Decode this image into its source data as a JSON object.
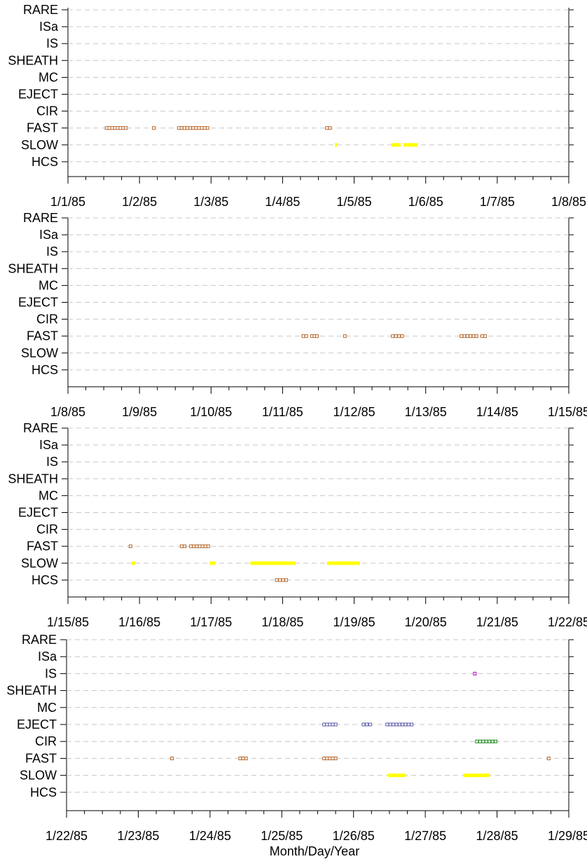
{
  "chart_data": {
    "type": "scatter",
    "xlabel": "Month/Day/Year",
    "categories": [
      "RARE",
      "ISa",
      "IS",
      "SHEATH",
      "MC",
      "EJECT",
      "CIR",
      "FAST",
      "SLOW",
      "HCS"
    ],
    "colors": {
      "FAST": "#b5652a",
      "SLOW": "#ffff00",
      "HCS": "#b5652a",
      "CIR": "#1a8a1a",
      "EJECT": "#5a5aa8",
      "IS": "#c000c0"
    },
    "grid": true,
    "panels": [
      {
        "xlim": [
          "1/1/85",
          "1/8/85"
        ],
        "ticks": [
          "1/1/85",
          "1/2/85",
          "1/3/85",
          "1/4/85",
          "1/5/85",
          "1/6/85",
          "1/7/85",
          "1/8/85"
        ],
        "series": [
          {
            "category": "FAST",
            "style": "squares",
            "ranges": [
              [
                0.52,
                0.83
              ],
              [
                1.18,
                1.22
              ],
              [
                1.53,
                1.97
              ],
              [
                3.6,
                3.68
              ]
            ]
          },
          {
            "category": "SLOW",
            "style": "bar",
            "ranges": [
              [
                3.73,
                3.77
              ],
              [
                4.52,
                4.65
              ],
              [
                4.69,
                4.89
              ]
            ]
          }
        ]
      },
      {
        "xlim": [
          "1/8/85",
          "1/15/85"
        ],
        "ticks": [
          "1/8/85",
          "1/9/85",
          "1/10/85",
          "1/11/85",
          "1/12/85",
          "1/13/85",
          "1/14/85",
          "1/15/85"
        ],
        "series": [
          {
            "category": "FAST",
            "style": "squares",
            "ranges": [
              [
                3.27,
                3.35
              ],
              [
                3.39,
                3.5
              ],
              [
                3.85,
                3.89
              ],
              [
                4.52,
                4.69
              ],
              [
                5.48,
                5.73
              ],
              [
                5.77,
                5.85
              ]
            ]
          }
        ]
      },
      {
        "xlim": [
          "1/15/85",
          "1/22/85"
        ],
        "ticks": [
          "1/15/85",
          "1/16/85",
          "1/17/85",
          "1/18/85",
          "1/19/85",
          "1/20/85",
          "1/21/85",
          "1/22/85"
        ],
        "series": [
          {
            "category": "FAST",
            "style": "squares",
            "ranges": [
              [
                0.85,
                0.9
              ],
              [
                1.57,
                1.65
              ],
              [
                1.7,
                1.98
              ]
            ]
          },
          {
            "category": "SLOW",
            "style": "bar",
            "ranges": [
              [
                0.89,
                0.94
              ],
              [
                1.98,
                2.06
              ],
              [
                2.55,
                3.18
              ],
              [
                3.62,
                4.08
              ]
            ]
          },
          {
            "category": "HCS",
            "style": "squares",
            "ranges": [
              [
                2.9,
                3.07
              ]
            ]
          }
        ]
      },
      {
        "xlim": [
          "1/22/85",
          "1/29/85"
        ],
        "ticks": [
          "1/22/85",
          "1/23/85",
          "1/24/85",
          "1/25/85",
          "1/26/85",
          "1/27/85",
          "1/28/85",
          "1/29/85"
        ],
        "series": [
          {
            "category": "IS",
            "style": "squares",
            "ranges": [
              [
                5.67,
                5.71
              ]
            ]
          },
          {
            "category": "EJECT",
            "style": "squares",
            "ranges": [
              [
                3.57,
                3.77
              ],
              [
                4.12,
                4.25
              ],
              [
                4.45,
                4.83
              ]
            ]
          },
          {
            "category": "CIR",
            "style": "squares",
            "ranges": [
              [
                5.7,
                6.0
              ]
            ]
          },
          {
            "category": "FAST",
            "style": "squares",
            "ranges": [
              [
                1.45,
                1.49
              ],
              [
                2.4,
                2.52
              ],
              [
                3.57,
                3.77
              ],
              [
                6.7,
                6.74
              ]
            ]
          },
          {
            "category": "SLOW",
            "style": "bar",
            "ranges": [
              [
                4.48,
                4.73
              ],
              [
                5.53,
                5.9
              ]
            ]
          }
        ]
      }
    ]
  }
}
